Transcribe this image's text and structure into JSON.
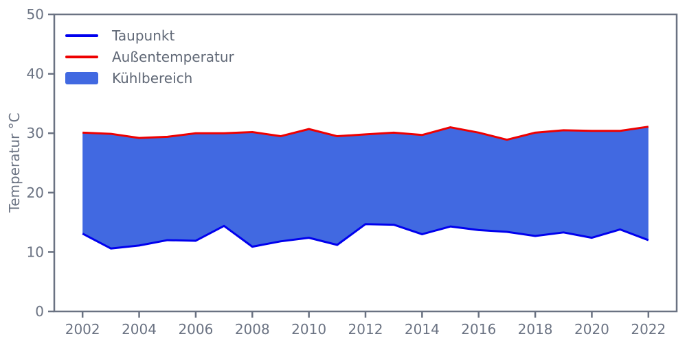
{
  "figure": {
    "title": "",
    "ylabel": "Temperatur °C",
    "xlabel": "",
    "background": "#ffffff",
    "axis_color": "#6a7282",
    "yticks": [
      0,
      10,
      20,
      30,
      40,
      50
    ],
    "xticks": [
      2002,
      2004,
      2006,
      2008,
      2010,
      2012,
      2014,
      2016,
      2018,
      2020,
      2022
    ]
  },
  "legend": {
    "items": [
      {
        "label": "Taupunkt",
        "swatch": "line",
        "color": "#0000ee"
      },
      {
        "label": "Außentemperatur",
        "swatch": "line",
        "color": "#ee0000"
      },
      {
        "label": "Kühlbereich",
        "swatch": "patch",
        "color": "#4169e1"
      }
    ]
  },
  "chart_data": {
    "type": "area",
    "title": "",
    "xlabel": "",
    "ylabel": "Temperatur °C",
    "xlim": [
      2001,
      2023
    ],
    "ylim": [
      0,
      50
    ],
    "grid": false,
    "legend_position": "upper-left",
    "x": [
      2002,
      2003,
      2004,
      2005,
      2006,
      2007,
      2008,
      2009,
      2010,
      2011,
      2012,
      2013,
      2014,
      2015,
      2016,
      2017,
      2018,
      2019,
      2020,
      2021,
      2022
    ],
    "series": [
      {
        "name": "Taupunkt",
        "color": "#0000ee",
        "values": [
          13.1,
          10.6,
          11.1,
          12.0,
          11.9,
          14.4,
          10.9,
          11.8,
          12.4,
          11.2,
          14.7,
          14.6,
          13.0,
          14.3,
          13.7,
          13.4,
          12.7,
          13.3,
          12.4,
          13.8,
          12.0
        ]
      },
      {
        "name": "Außentemperatur",
        "color": "#ee0000",
        "values": [
          30.1,
          29.9,
          29.2,
          29.4,
          30.0,
          30.0,
          30.2,
          29.5,
          30.7,
          29.5,
          29.8,
          30.1,
          29.7,
          31.0,
          30.1,
          28.9,
          30.1,
          30.5,
          30.4,
          30.4,
          31.1
        ]
      }
    ],
    "fill_between": {
      "name": "Kühlbereich",
      "color": "#4169e1",
      "between": [
        "Taupunkt",
        "Außentemperatur"
      ]
    }
  }
}
